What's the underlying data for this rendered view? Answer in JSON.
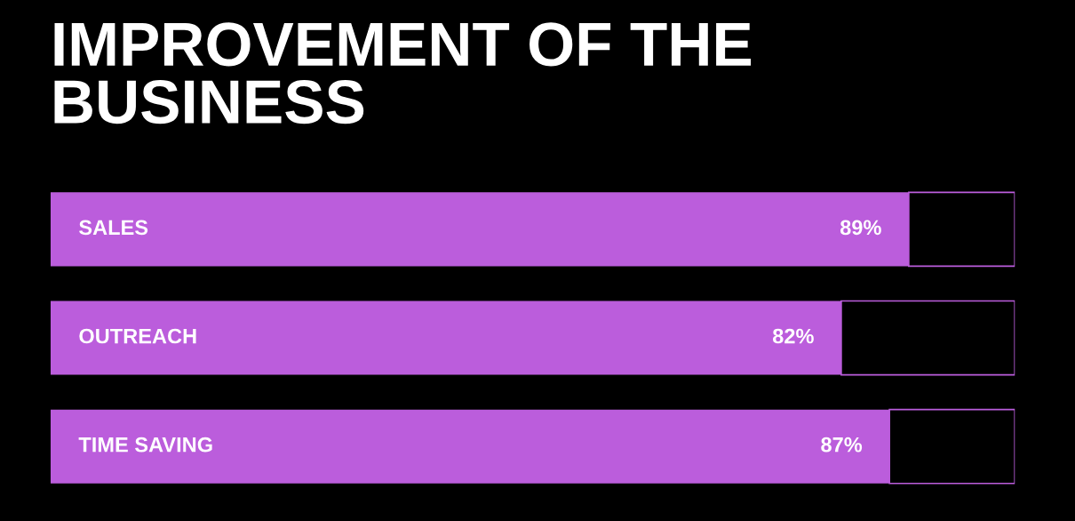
{
  "chart_data": {
    "type": "bar",
    "orientation": "horizontal",
    "stacked": true,
    "title": "IMPROVEMENT OF THE BUSINESS",
    "categories": [
      "SALES",
      "OUTREACH",
      "TIME SAVING"
    ],
    "series": [
      {
        "color": "#bb5ddc",
        "values": [
          89,
          82,
          87
        ],
        "value_labels": [
          "89%",
          "82%",
          "87%"
        ]
      },
      {
        "color": "#000000",
        "values": [
          11,
          18,
          13
        ]
      }
    ],
    "xlim": [
      0,
      100
    ],
    "tick_labels": false
  }
}
